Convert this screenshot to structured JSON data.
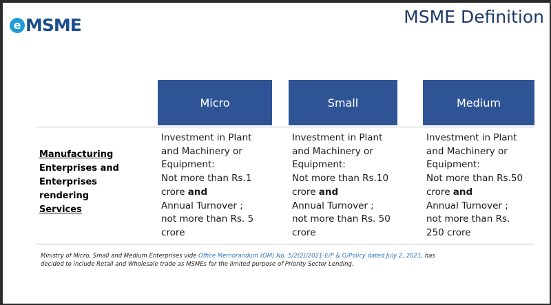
{
  "logo": {
    "e_letter": "e",
    "text": "MSME"
  },
  "title": "MSME Definition",
  "columns": [
    "Micro",
    "Small",
    "Medium"
  ],
  "row_label": {
    "line1": "Manufacturing",
    "line2": "Enterprises and",
    "line3": "Enterprises rendering",
    "line4": "Services"
  },
  "cells": {
    "micro": {
      "l1": "Investment in Plant",
      "l2": "and Machinery or",
      "l3": "Equipment:",
      "l4": "Not more than Rs.1",
      "l5a": "crore ",
      "l5b": "and",
      "l6": "Annual Turnover ;",
      "l7": "not more than Rs. 5",
      "l8": "crore"
    },
    "small": {
      "l1": "Investment in Plant",
      "l2": "and Machinery or",
      "l3": "Equipment:",
      "l4": "Not more than Rs.10",
      "l5a": "crore ",
      "l5b": "and",
      "l6": "Annual Turnover ;",
      "l7": "not more than Rs. 50",
      "l8": "crore"
    },
    "medium": {
      "l1": "Investment in Plant",
      "l2": "and Machinery or",
      "l3": "Equipment:",
      "l4": "Not more than Rs.50",
      "l5a": "crore ",
      "l5b": "and",
      "l6": "Annual Turnover ;",
      "l7": "not more than Rs.",
      "l8": "250 crore"
    }
  },
  "footnote": {
    "prefix": "Ministry of Micro, Small and Medium Enterprises vide ",
    "link": "Office Memorandum (OM) No. 5/2(2)/2021-E/P & G/Policy dated July 2, 2021",
    "suffix": ", has",
    "line2": "decided to include Retail and Wholesale trade as MSMEs for the limited purpose of Priority Sector Lending."
  },
  "colors": {
    "header_bg": "#2f5496",
    "title": "#1f3864",
    "logo_blue": "#1b4f8f",
    "logo_circle": "#1f9bd7",
    "link": "#2e74b5"
  }
}
